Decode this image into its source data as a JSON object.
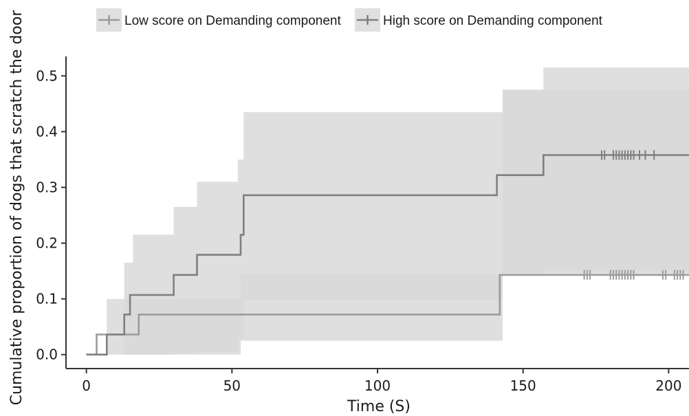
{
  "chart_data": {
    "type": "line",
    "title": "",
    "xlabel": "Time (S)",
    "ylabel": "Cumulative proportion of dogs that scratch the door",
    "xlim": [
      -7,
      207
    ],
    "ylim": [
      -0.025,
      0.535
    ],
    "x_ticks": [
      0,
      50,
      100,
      150,
      200
    ],
    "x_tick_labels": [
      "0",
      "50",
      "100",
      "150",
      "200"
    ],
    "y_ticks": [
      0.0,
      0.1,
      0.2,
      0.3,
      0.4,
      0.5
    ],
    "y_tick_labels": [
      "0.0",
      "0.1",
      "0.2",
      "0.3",
      "0.4",
      "0.5"
    ],
    "grid": false,
    "legend": "top",
    "series": [
      {
        "name": "Low score on Demanding component",
        "color": "#9b9b9b",
        "step": [
          [
            0,
            0.0
          ],
          [
            3.5,
            0.036
          ],
          [
            18,
            0.072
          ],
          [
            142,
            0.143
          ],
          [
            207,
            0.143
          ]
        ],
        "censored_x": [
          171,
          172,
          173,
          180,
          181,
          182,
          183,
          184,
          185,
          186,
          187,
          188,
          198,
          199,
          202,
          203,
          204,
          205
        ],
        "censored_y": 0.143,
        "ci_steps": [
          [
            0,
            0.0,
            0.0
          ],
          [
            7,
            0.0,
            0.1
          ],
          [
            53,
            0.025,
            0.145
          ],
          [
            143,
            0.145,
            0.475
          ],
          [
            157,
            0.15,
            0.515
          ],
          [
            207,
            0.15,
            0.515
          ]
        ]
      },
      {
        "name": "High score on Demanding component",
        "color": "#7f7f7f",
        "step": [
          [
            0,
            0.0
          ],
          [
            7,
            0.036
          ],
          [
            13,
            0.072
          ],
          [
            15,
            0.107
          ],
          [
            30,
            0.143
          ],
          [
            38,
            0.179
          ],
          [
            53,
            0.215
          ],
          [
            54,
            0.286
          ],
          [
            141,
            0.322
          ],
          [
            157,
            0.358
          ],
          [
            207,
            0.358
          ]
        ],
        "censored_x": [
          177,
          178,
          181,
          182,
          183,
          184,
          185,
          186,
          187,
          188,
          190,
          192,
          195
        ],
        "censored_y": 0.358,
        "ci_steps": [
          [
            0,
            0.0,
            0.0
          ],
          [
            13,
            0.0,
            0.165
          ],
          [
            16,
            0.0,
            0.215
          ],
          [
            30,
            0.002,
            0.265
          ],
          [
            38,
            0.005,
            0.31
          ],
          [
            52,
            0.03,
            0.35
          ],
          [
            54,
            0.098,
            0.435
          ],
          [
            141,
            0.098,
            0.435
          ],
          [
            143,
            0.145,
            0.475
          ],
          [
            207,
            0.145,
            0.515
          ]
        ]
      }
    ]
  }
}
